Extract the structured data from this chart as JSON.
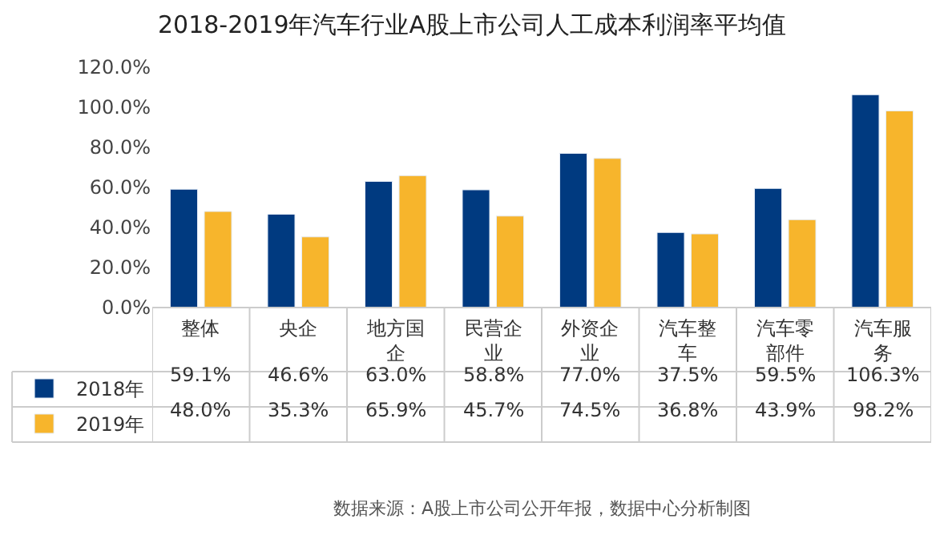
{
  "chart_data": {
    "type": "bar",
    "title": "2018-2019年汽车行业A股上市公司人工成本利润率平均值",
    "categories": [
      "整体",
      "央企",
      "地方国企",
      "民营企业",
      "外资企业",
      "汽车整车",
      "汽车零部件",
      "汽车服务"
    ],
    "series": [
      {
        "name": "2018年",
        "color": "#003a80",
        "values": [
          59.1,
          46.6,
          63.0,
          58.8,
          77.0,
          37.5,
          59.5,
          106.3
        ],
        "value_labels": [
          "59.1%",
          "46.6%",
          "63.0%",
          "58.8%",
          "77.0%",
          "37.5%",
          "59.5%",
          "106.3%"
        ]
      },
      {
        "name": "2019年",
        "color": "#f7b52c",
        "values": [
          48.0,
          35.3,
          65.9,
          45.7,
          74.5,
          36.8,
          43.9,
          98.2
        ],
        "value_labels": [
          "48.0%",
          "35.3%",
          "65.9%",
          "45.7%",
          "74.5%",
          "36.8%",
          "43.9%",
          "98.2%"
        ]
      }
    ],
    "ylim": [
      0,
      120
    ],
    "yticks": [
      {
        "value": 0,
        "label": "0.0%"
      },
      {
        "value": 20,
        "label": "20.0%"
      },
      {
        "value": 40,
        "label": "40.0%"
      },
      {
        "value": 60,
        "label": "60.0%"
      },
      {
        "value": 80,
        "label": "80.0%"
      },
      {
        "value": 100,
        "label": "100.0%"
      },
      {
        "value": 120,
        "label": "120.0%"
      }
    ],
    "legend": "bottom left",
    "annotations": [
      "数据来源：A股上市公司公开年报，数据中心分析制图"
    ]
  }
}
